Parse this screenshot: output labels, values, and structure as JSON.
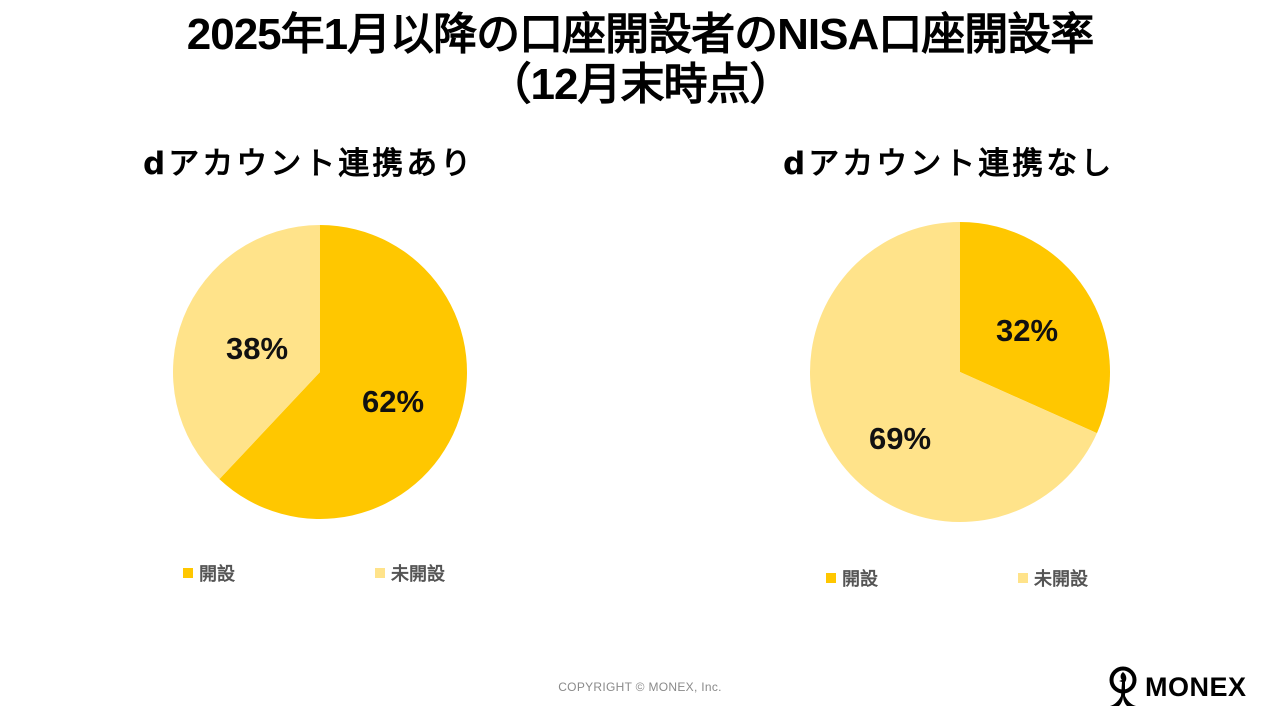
{
  "title": {
    "line1": "2025年1月以降の口座開設者のNISA口座開設率",
    "line2": "（12月末時点）"
  },
  "colors": {
    "opened": "#FFC700",
    "not_opened": "#FFE38A",
    "label_text": "#111111",
    "legend_text": "#555555"
  },
  "charts": [
    {
      "subtitle": "dアカウント連携あり",
      "slices": [
        {
          "label": "62%",
          "name": "開設",
          "value": 62
        },
        {
          "label": "38%",
          "name": "未開設",
          "value": 38
        }
      ],
      "legend": [
        {
          "label": "開設"
        },
        {
          "label": "未開設"
        }
      ]
    },
    {
      "subtitle": "dアカウント連携なし",
      "slices": [
        {
          "label": "32%",
          "name": "開設",
          "value": 32
        },
        {
          "label": "69%",
          "name": "未開設",
          "value": 69
        }
      ],
      "legend": [
        {
          "label": "開設"
        },
        {
          "label": "未開設"
        }
      ]
    }
  ],
  "chart_data": [
    {
      "type": "pie",
      "title": "dアカウント連携あり",
      "categories": [
        "開設",
        "未開設"
      ],
      "values": [
        62,
        38
      ],
      "data_labels": [
        "62%",
        "38%"
      ],
      "legend_position": "bottom"
    },
    {
      "type": "pie",
      "title": "dアカウント連携なし",
      "categories": [
        "開設",
        "未開設"
      ],
      "values": [
        32,
        69
      ],
      "data_labels": [
        "32%",
        "69%"
      ],
      "legend_position": "bottom"
    }
  ],
  "footer": {
    "copyright": "COPYRIGHT © MONEX, Inc.",
    "logo_text": "MONEX"
  }
}
